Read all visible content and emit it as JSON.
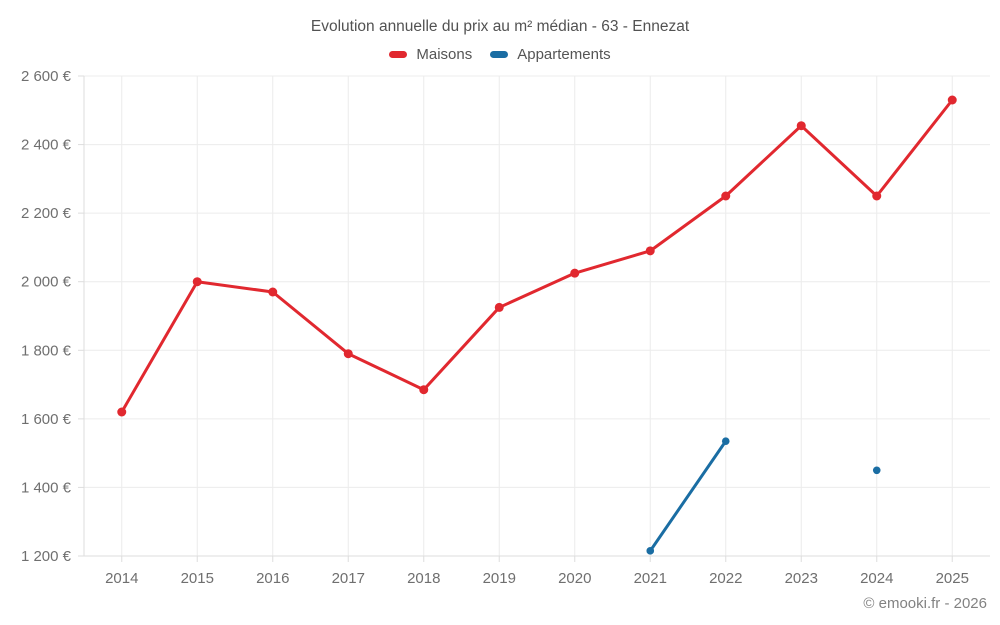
{
  "title": "Evolution annuelle du prix au m² médian - 63 - Ennezat",
  "legend": [
    {
      "label": "Maisons",
      "color": "#e1282f"
    },
    {
      "label": "Appartements",
      "color": "#1a6da3"
    }
  ],
  "footer": "© emooki.fr - 2026",
  "colors": {
    "maisons": "#e1282f",
    "appartements": "#1a6da3",
    "gridline": "#ececec",
    "axis_border": "#dddddd",
    "tick_label": "#6f6f6f"
  },
  "chart_data": {
    "type": "line",
    "title": "Evolution annuelle du prix au m² médian - 63 - Ennezat",
    "categories": [
      "2014",
      "2015",
      "2016",
      "2017",
      "2018",
      "2019",
      "2020",
      "2021",
      "2022",
      "2023",
      "2024",
      "2025"
    ],
    "series": [
      {
        "name": "Maisons",
        "color": "#e1282f",
        "values": [
          1620,
          2000,
          1970,
          1790,
          1685,
          1925,
          2025,
          2090,
          2250,
          2455,
          2250,
          2530
        ]
      },
      {
        "name": "Appartements",
        "color": "#1a6da3",
        "values": [
          null,
          null,
          null,
          null,
          null,
          null,
          null,
          1215,
          1535,
          null,
          1450,
          null
        ]
      }
    ],
    "xlabel": "",
    "ylabel": "",
    "ylim": [
      1200,
      2600
    ],
    "yticks": [
      1200,
      1400,
      1600,
      1800,
      2000,
      2200,
      2400,
      2600
    ],
    "ytick_labels": [
      "1 200 €",
      "1 400 €",
      "1 600 €",
      "1 800 €",
      "2 000 €",
      "2 200 €",
      "2 400 €",
      "2 600 €"
    ],
    "grid": true,
    "legend_position": "top",
    "span_gaps": false
  }
}
